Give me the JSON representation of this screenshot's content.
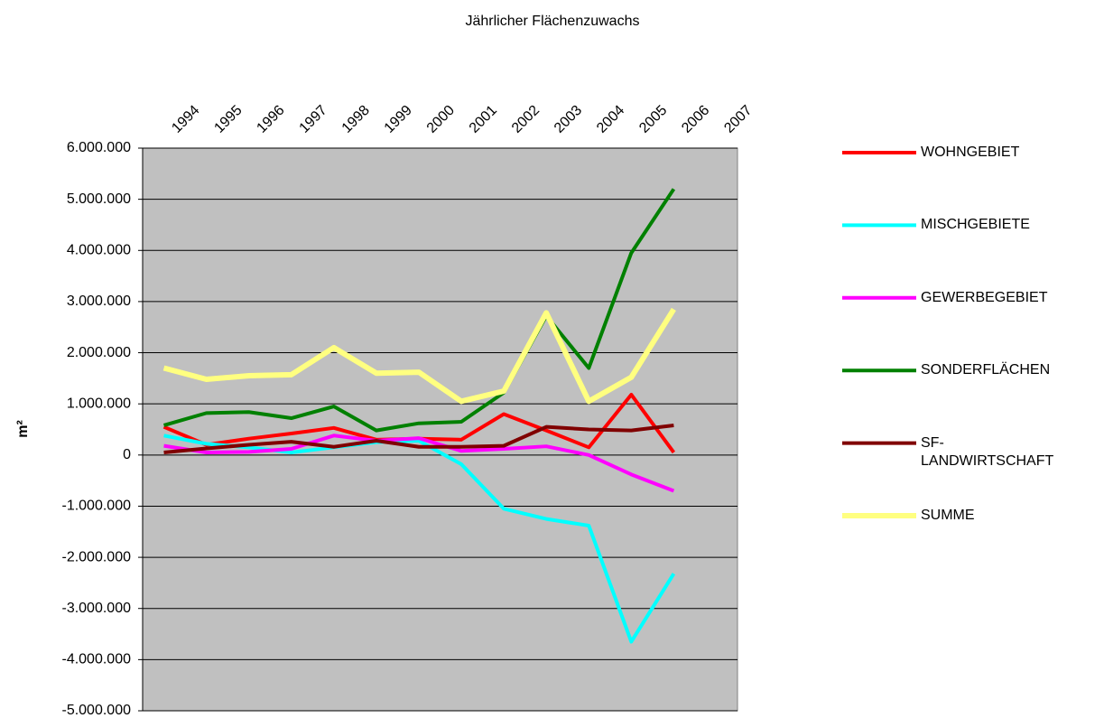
{
  "chart_data": {
    "type": "line",
    "title": "Jährlicher Flächenzuwachs",
    "y_label": "m²",
    "categories": [
      "1994",
      "1995",
      "1996",
      "1997",
      "1998",
      "1999",
      "2000",
      "2001",
      "2002",
      "2003",
      "2004",
      "2005",
      "2006",
      "2007"
    ],
    "ylim": [
      -5000000,
      6000000
    ],
    "yticks": [
      {
        "value": -5000000,
        "label": "-5.000.000"
      },
      {
        "value": -4000000,
        "label": "-4.000.000"
      },
      {
        "value": -3000000,
        "label": "-3.000.000"
      },
      {
        "value": -2000000,
        "label": "-2.000.000"
      },
      {
        "value": -1000000,
        "label": "-1.000.000"
      },
      0,
      {
        "value": 1000000,
        "label": "1.000.000"
      },
      {
        "value": 2000000,
        "label": "2.000.000"
      },
      {
        "value": 3000000,
        "label": "3.000.000"
      },
      {
        "value": 4000000,
        "label": "4.000.000"
      },
      {
        "value": 5000000,
        "label": "5.000.000"
      },
      {
        "value": 6000000,
        "label": "6.000.000"
      }
    ],
    "grid": true,
    "plot_background": "#c0c0c0",
    "legend": "right",
    "series": [
      {
        "name": "WOHNGEBIET",
        "color": "#ff0000",
        "values": [
          550000,
          200000,
          320000,
          420000,
          530000,
          300000,
          320000,
          300000,
          800000,
          480000,
          150000,
          1180000,
          50000,
          null
        ]
      },
      {
        "name": "MISCHGEBIETE",
        "color": "#00ffff",
        "values": [
          380000,
          220000,
          150000,
          50000,
          150000,
          250000,
          280000,
          -180000,
          -1050000,
          -1250000,
          -1380000,
          -3650000,
          -2320000,
          null
        ]
      },
      {
        "name": "GEWERBEGEBIET",
        "color": "#ff00ff",
        "values": [
          180000,
          50000,
          60000,
          120000,
          380000,
          280000,
          330000,
          80000,
          120000,
          170000,
          0,
          -380000,
          -700000,
          null
        ]
      },
      {
        "name": "SONDERFLÄCHEN",
        "color": "#008000",
        "values": [
          580000,
          820000,
          840000,
          720000,
          950000,
          480000,
          620000,
          650000,
          1220000,
          2720000,
          1700000,
          3950000,
          5200000,
          null
        ]
      },
      {
        "name": "SF-LANDWIRTSCHAFT",
        "color": "#800000",
        "values": [
          50000,
          130000,
          200000,
          260000,
          160000,
          280000,
          160000,
          160000,
          180000,
          550000,
          500000,
          480000,
          580000,
          null
        ]
      },
      {
        "name": "SUMME",
        "color": "#ffff80",
        "values": [
          1700000,
          1480000,
          1550000,
          1570000,
          2100000,
          1600000,
          1620000,
          1050000,
          1250000,
          2780000,
          1050000,
          1520000,
          2850000,
          null
        ]
      }
    ]
  }
}
